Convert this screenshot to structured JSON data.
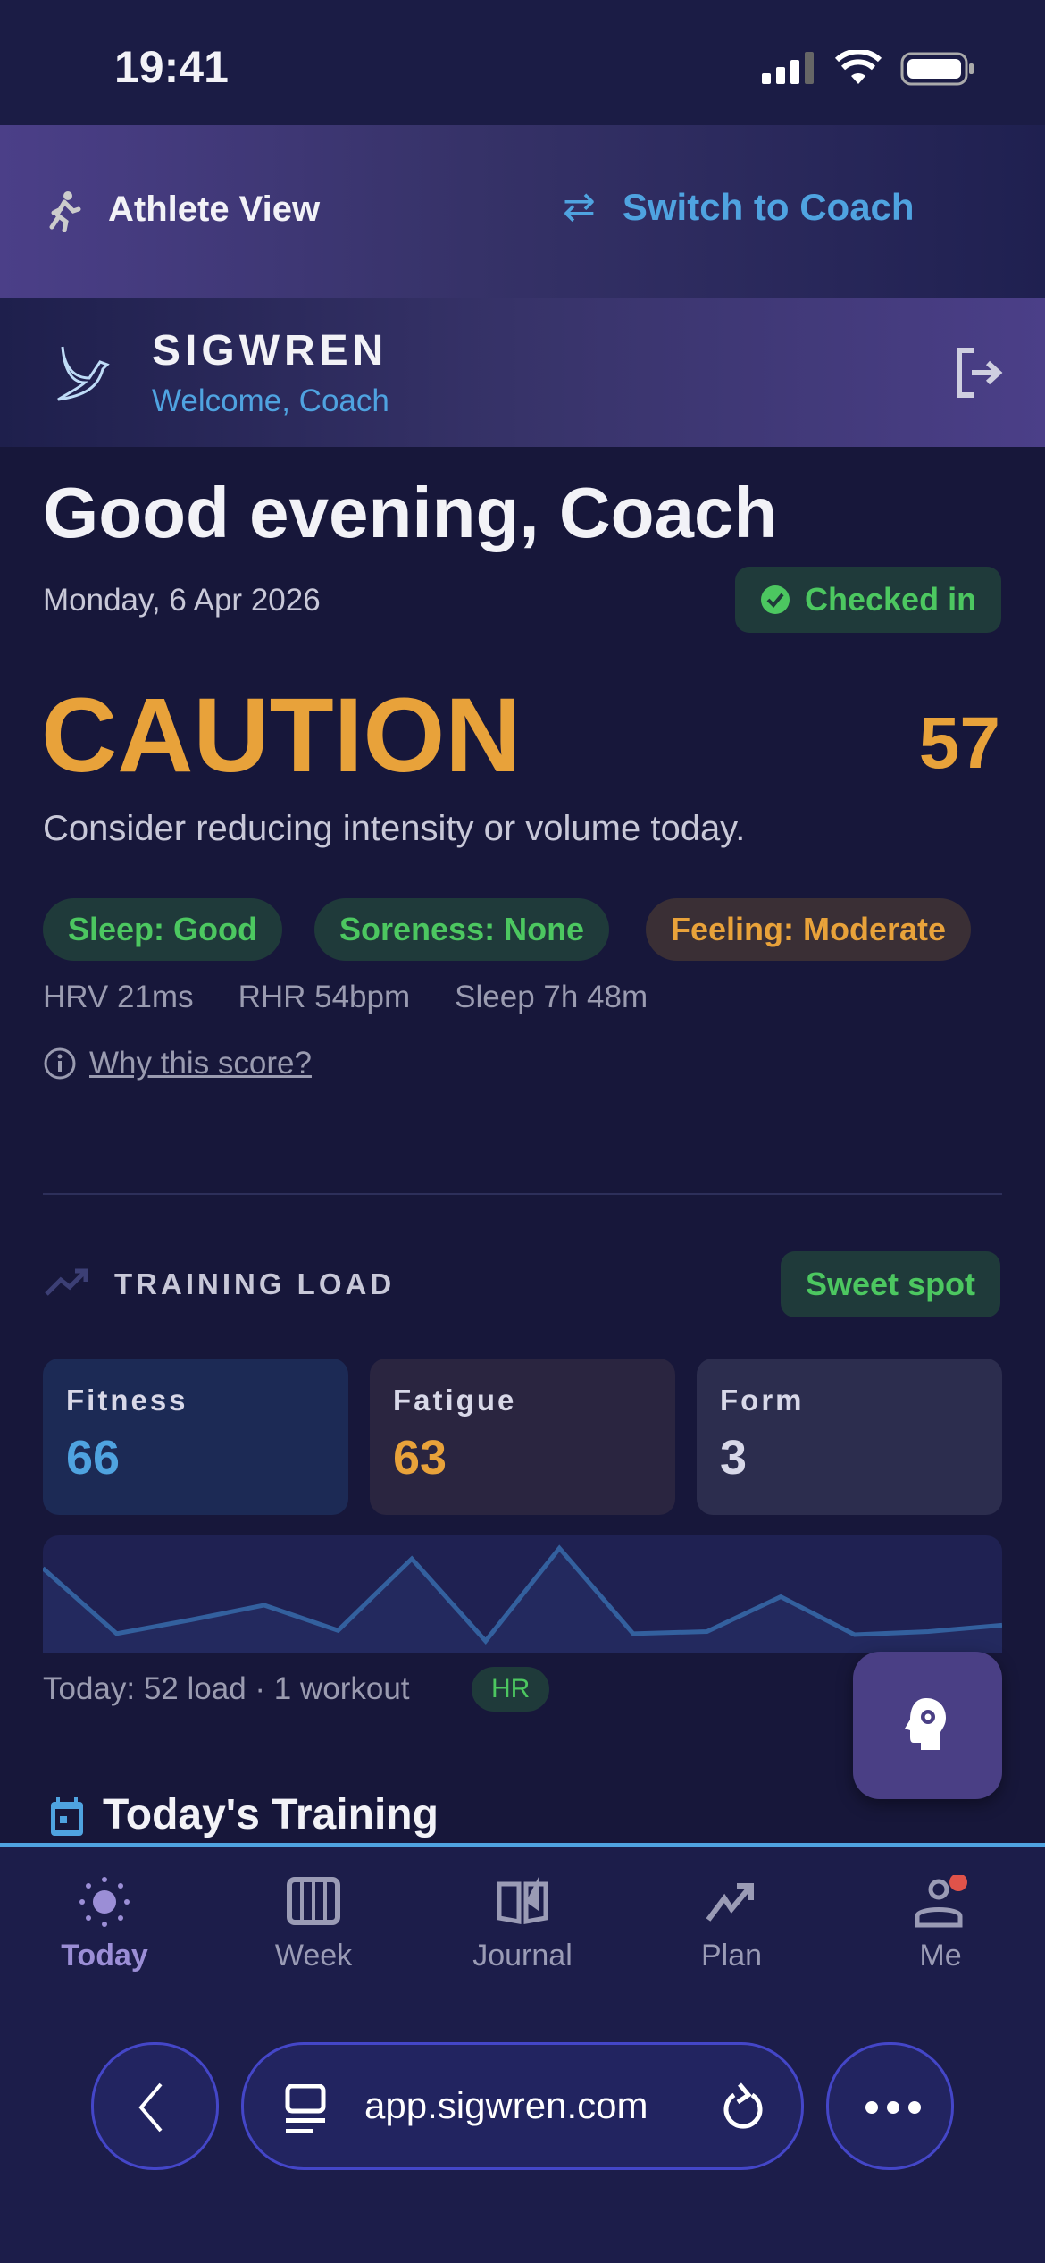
{
  "status_bar": {
    "time": "19:41"
  },
  "role_bar": {
    "current": "Athlete View",
    "switch": "Switch to Coach"
  },
  "header": {
    "brand": "SIGWREN",
    "welcome": "Welcome, Coach"
  },
  "greeting": {
    "title": "Good evening, Coach",
    "date": "Monday, 6 Apr 2026",
    "checkin": "Checked in"
  },
  "readiness": {
    "status": "CAUTION",
    "score": "57",
    "message": "Consider reducing intensity or volume today.",
    "color": "#e8a23a",
    "chips": [
      {
        "label": "Sleep: Good",
        "tone": "good"
      },
      {
        "label": "Soreness: None",
        "tone": "good"
      },
      {
        "label": "Feeling: Moderate",
        "tone": "warn"
      }
    ],
    "metrics": [
      "HRV 21ms",
      "RHR 54bpm",
      "Sleep 7h 48m"
    ],
    "why": "Why this score?"
  },
  "training_load": {
    "title": "TRAINING LOAD",
    "badge": "Sweet spot",
    "cards": [
      {
        "label": "Fitness",
        "value": "66",
        "color": "#4fa3e0"
      },
      {
        "label": "Fatigue",
        "value": "63",
        "color": "#e8a23a"
      },
      {
        "label": "Form",
        "value": "3",
        "color": "#d8d8e8"
      }
    ],
    "sparkline": [
      74,
      12,
      25,
      39,
      15,
      83,
      5,
      93,
      12,
      14,
      47,
      11,
      14,
      20
    ],
    "today": "Today: 52 load · 1 workout",
    "source": "HR"
  },
  "todays_training": {
    "title": "Today's Training"
  },
  "nav": [
    {
      "label": "Today",
      "icon": "sun-icon",
      "active": true
    },
    {
      "label": "Week",
      "icon": "calendar-week-icon"
    },
    {
      "label": "Journal",
      "icon": "book-icon"
    },
    {
      "label": "Plan",
      "icon": "trending-up-icon"
    },
    {
      "label": "Me",
      "icon": "user-icon",
      "badge": true
    }
  ],
  "browser": {
    "url": "app.sigwren.com"
  }
}
